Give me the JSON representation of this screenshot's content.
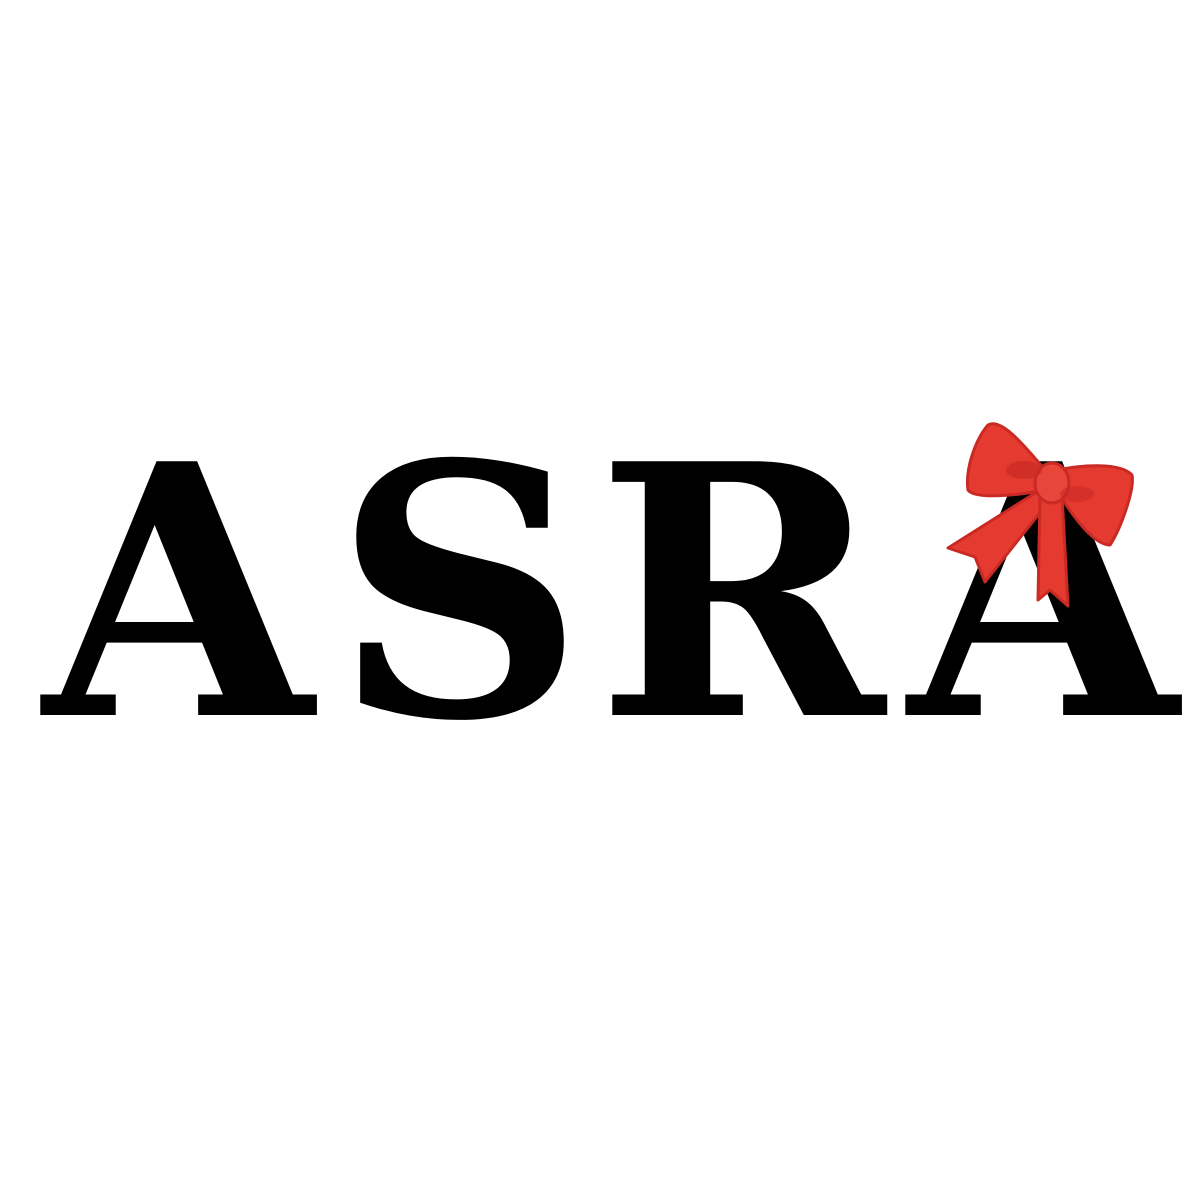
{
  "logo": {
    "text": "ASRA",
    "letters": [
      "A",
      "S",
      "R",
      "A"
    ],
    "text_color": "#000000",
    "decoration": "red-bow-icon",
    "bow_color": "#e53a30",
    "bow_shade": "#c92a24"
  }
}
